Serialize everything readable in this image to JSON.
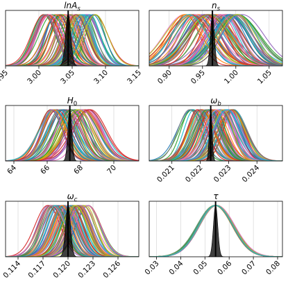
{
  "chart_data": [
    {
      "id": "lnAs",
      "type": "line",
      "title": "lnA",
      "title_sub": "s",
      "xlim": [
        2.95,
        3.15
      ],
      "ticks": [
        2.95,
        3.0,
        3.05,
        3.1,
        3.15
      ],
      "tick_labels": [
        "2.95",
        "3.00",
        "3.05",
        "3.10",
        "3.15"
      ],
      "grid": [
        2.95,
        3.0,
        3.05,
        3.1,
        3.15
      ],
      "fiducial": 3.044,
      "reference": {
        "mean": 3.044,
        "sigma": 0.004
      },
      "family": {
        "count": 70,
        "mean_range": [
          3.005,
          3.085
        ],
        "sigma_range": [
          0.014,
          0.02
        ]
      }
    },
    {
      "id": "ns",
      "type": "line",
      "title": "n",
      "title_sub": "s",
      "xlim": [
        0.87,
        1.07
      ],
      "ticks": [
        0.9,
        0.95,
        1.0,
        1.05
      ],
      "tick_labels": [
        "0.90",
        "0.95",
        "1.00",
        "1.05"
      ],
      "grid": [
        0.9,
        0.95,
        1.0,
        1.05
      ],
      "fiducial": 0.9649,
      "reference": {
        "mean": 0.9649,
        "sigma": 0.003
      },
      "family": {
        "count": 70,
        "mean_range": [
          0.92,
          1.01
        ],
        "sigma_range": [
          0.02,
          0.034
        ]
      }
    },
    {
      "id": "H0",
      "type": "line",
      "title": "H",
      "title_sub": "0",
      "xlim": [
        63.5,
        71.5
      ],
      "ticks": [
        64,
        66,
        68,
        70
      ],
      "tick_labels": [
        "64",
        "66",
        "68",
        "70"
      ],
      "grid": [
        64,
        66,
        68,
        70
      ],
      "fiducial": 67.36,
      "reference": {
        "mean": 67.36,
        "sigma": 0.12
      },
      "family": {
        "count": 55,
        "mean_range": [
          66.2,
          68.6
        ],
        "sigma_range": [
          0.6,
          1.0
        ]
      }
    },
    {
      "id": "omegab",
      "type": "line",
      "title": "ω",
      "title_sub": "b",
      "xlim": [
        0.0202,
        0.0249
      ],
      "ticks": [
        0.021,
        0.022,
        0.023,
        0.024
      ],
      "tick_labels": [
        "0.021",
        "0.022",
        "0.023",
        "0.024"
      ],
      "grid": [
        0.021,
        0.022,
        0.023,
        0.024
      ],
      "fiducial": 0.02237,
      "reference": {
        "mean": 0.02237,
        "sigma": 5e-05
      },
      "family": {
        "count": 70,
        "mean_range": [
          0.0216,
          0.0232
        ],
        "sigma_range": [
          0.00035,
          0.0005
        ]
      }
    },
    {
      "id": "omegac",
      "type": "line",
      "title": "ω",
      "title_sub": "c",
      "xlim": [
        0.1125,
        0.1285
      ],
      "ticks": [
        0.114,
        0.117,
        0.12,
        0.123,
        0.126
      ],
      "tick_labels": [
        "0.114",
        "0.117",
        "0.120",
        "0.123",
        "0.126"
      ],
      "grid": [
        0.114,
        0.117,
        0.12,
        0.123,
        0.126
      ],
      "fiducial": 0.12,
      "reference": {
        "mean": 0.12,
        "sigma": 0.0003
      },
      "family": {
        "count": 70,
        "mean_range": [
          0.1175,
          0.1225
        ],
        "sigma_range": [
          0.0012,
          0.0016
        ]
      }
    },
    {
      "id": "tau",
      "type": "line",
      "title": "τ",
      "title_sub": "",
      "xlim": [
        0.027,
        0.082
      ],
      "ticks": [
        0.03,
        0.04,
        0.05,
        0.06,
        0.07,
        0.08
      ],
      "tick_labels": [
        "0.03",
        "0.04",
        "0.05",
        "0.06",
        "0.07",
        "0.08"
      ],
      "grid": [
        0.03,
        0.04,
        0.05,
        0.06,
        0.07,
        0.08
      ],
      "fiducial": 0.0544,
      "reference": {
        "mean": 0.0544,
        "sigma": 0.0009
      },
      "family": {
        "count": 40,
        "mean_range": [
          0.054,
          0.055
        ],
        "sigma_range": [
          0.007,
          0.0074
        ]
      }
    }
  ],
  "palette": [
    "#1f77b4",
    "#ff7f0e",
    "#2ca02c",
    "#d62728",
    "#9467bd",
    "#8c564b",
    "#e377c2",
    "#7f7f7f",
    "#bcbd22",
    "#17becf"
  ]
}
